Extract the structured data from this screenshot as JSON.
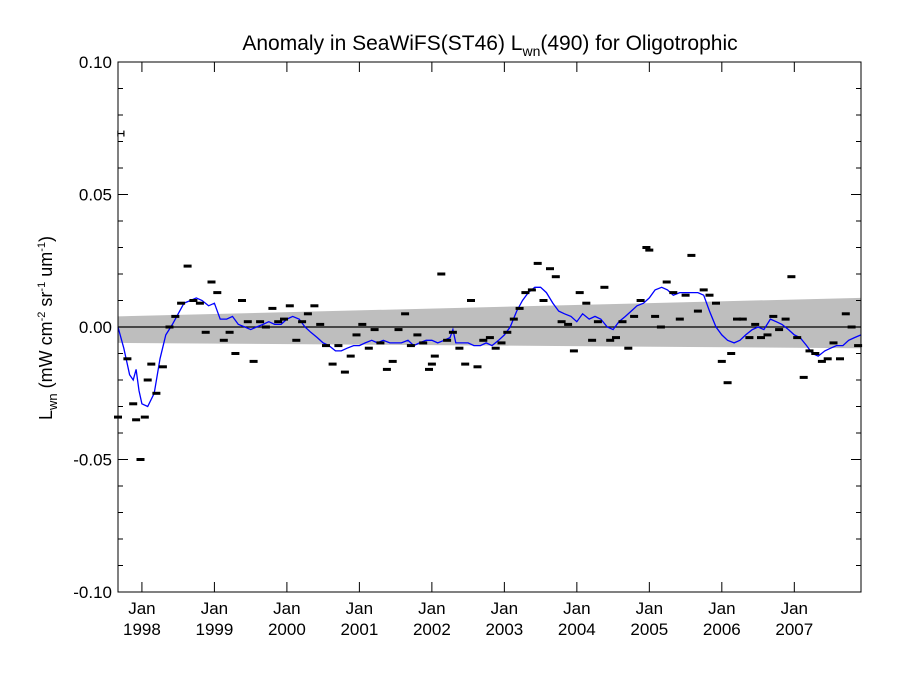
{
  "chart_data": {
    "type": "scatter",
    "title": {
      "prefix": "Anomaly in SeaWiFS(ST46) L",
      "subscript": "wn",
      "suffix": "(490) for Oligotrophic"
    },
    "ylabel": {
      "base": "L",
      "base_sub": "wn",
      "open": " (mW cm",
      "exp1": "-2",
      "mid1": " sr",
      "exp2": "-1",
      "mid2": " um",
      "exp3": "-1",
      "close": ")"
    },
    "xlim": [
      1997.67,
      2007.92
    ],
    "ylim": [
      -0.1,
      0.1
    ],
    "yticks": [
      {
        "value": 0.1,
        "label": "0.10"
      },
      {
        "value": 0.05,
        "label": "0.05"
      },
      {
        "value": 0.0,
        "label": "0.00"
      },
      {
        "value": -0.05,
        "label": "-0.05"
      },
      {
        "value": -0.1,
        "label": "-0.10"
      }
    ],
    "xticks": [
      {
        "value": 1998.0,
        "month": "Jan",
        "year": "1998"
      },
      {
        "value": 1999.0,
        "month": "Jan",
        "year": "1999"
      },
      {
        "value": 2000.0,
        "month": "Jan",
        "year": "2000"
      },
      {
        "value": 2001.0,
        "month": "Jan",
        "year": "2001"
      },
      {
        "value": 2002.0,
        "month": "Jan",
        "year": "2002"
      },
      {
        "value": 2003.0,
        "month": "Jan",
        "year": "2003"
      },
      {
        "value": 2004.0,
        "month": "Jan",
        "year": "2004"
      },
      {
        "value": 2005.0,
        "month": "Jan",
        "year": "2005"
      },
      {
        "value": 2006.0,
        "month": "Jan",
        "year": "2006"
      },
      {
        "value": 2007.0,
        "month": "Jan",
        "year": "2007"
      }
    ],
    "error_bar_marker": {
      "x": 1997.71,
      "y": 0.073
    },
    "points": [
      {
        "x": 1997.67,
        "y": -0.034
      },
      {
        "x": 1997.8,
        "y": -0.012
      },
      {
        "x": 1997.88,
        "y": -0.029
      },
      {
        "x": 1997.92,
        "y": -0.035
      },
      {
        "x": 1997.98,
        "y": -0.05
      },
      {
        "x": 1998.04,
        "y": -0.034
      },
      {
        "x": 1998.08,
        "y": -0.02
      },
      {
        "x": 1998.13,
        "y": -0.014
      },
      {
        "x": 1998.2,
        "y": -0.025
      },
      {
        "x": 1998.29,
        "y": -0.015
      },
      {
        "x": 1998.38,
        "y": 0.0
      },
      {
        "x": 1998.46,
        "y": 0.004
      },
      {
        "x": 1998.54,
        "y": 0.009
      },
      {
        "x": 1998.63,
        "y": 0.023
      },
      {
        "x": 1998.71,
        "y": 0.01
      },
      {
        "x": 1998.8,
        "y": 0.009
      },
      {
        "x": 1998.88,
        "y": -0.002
      },
      {
        "x": 1998.96,
        "y": 0.017
      },
      {
        "x": 1999.04,
        "y": 0.013
      },
      {
        "x": 1999.13,
        "y": -0.005
      },
      {
        "x": 1999.21,
        "y": -0.002
      },
      {
        "x": 1999.29,
        "y": -0.01
      },
      {
        "x": 1999.38,
        "y": 0.01
      },
      {
        "x": 1999.46,
        "y": 0.002
      },
      {
        "x": 1999.54,
        "y": -0.013
      },
      {
        "x": 1999.63,
        "y": 0.002
      },
      {
        "x": 1999.71,
        "y": 0.0
      },
      {
        "x": 1999.8,
        "y": 0.007
      },
      {
        "x": 1999.88,
        "y": 0.002
      },
      {
        "x": 1999.96,
        "y": 0.003
      },
      {
        "x": 2000.04,
        "y": 0.008
      },
      {
        "x": 2000.13,
        "y": -0.005
      },
      {
        "x": 2000.21,
        "y": 0.002
      },
      {
        "x": 2000.29,
        "y": 0.005
      },
      {
        "x": 2000.38,
        "y": 0.008
      },
      {
        "x": 2000.46,
        "y": 0.001
      },
      {
        "x": 2000.54,
        "y": -0.007
      },
      {
        "x": 2000.63,
        "y": -0.014
      },
      {
        "x": 2000.71,
        "y": -0.007
      },
      {
        "x": 2000.8,
        "y": -0.017
      },
      {
        "x": 2000.88,
        "y": -0.011
      },
      {
        "x": 2000.96,
        "y": -0.003
      },
      {
        "x": 2001.04,
        "y": 0.001
      },
      {
        "x": 2001.13,
        "y": -0.008
      },
      {
        "x": 2001.21,
        "y": -0.001
      },
      {
        "x": 2001.29,
        "y": -0.006
      },
      {
        "x": 2001.38,
        "y": -0.016
      },
      {
        "x": 2001.46,
        "y": -0.013
      },
      {
        "x": 2001.54,
        "y": -0.001
      },
      {
        "x": 2001.63,
        "y": 0.005
      },
      {
        "x": 2001.71,
        "y": -0.007
      },
      {
        "x": 2001.8,
        "y": -0.003
      },
      {
        "x": 2001.88,
        "y": -0.006
      },
      {
        "x": 2001.96,
        "y": -0.016
      },
      {
        "x": 2002.0,
        "y": -0.014
      },
      {
        "x": 2002.04,
        "y": -0.011
      },
      {
        "x": 2002.13,
        "y": 0.02
      },
      {
        "x": 2002.21,
        "y": -0.005
      },
      {
        "x": 2002.29,
        "y": -0.002
      },
      {
        "x": 2002.38,
        "y": -0.008
      },
      {
        "x": 2002.46,
        "y": -0.014
      },
      {
        "x": 2002.54,
        "y": 0.01
      },
      {
        "x": 2002.63,
        "y": -0.015
      },
      {
        "x": 2002.71,
        "y": -0.005
      },
      {
        "x": 2002.8,
        "y": -0.004
      },
      {
        "x": 2002.88,
        "y": -0.008
      },
      {
        "x": 2002.96,
        "y": -0.006
      },
      {
        "x": 2003.04,
        "y": -0.002
      },
      {
        "x": 2003.13,
        "y": 0.003
      },
      {
        "x": 2003.21,
        "y": 0.007
      },
      {
        "x": 2003.29,
        "y": 0.013
      },
      {
        "x": 2003.38,
        "y": 0.014
      },
      {
        "x": 2003.46,
        "y": 0.024
      },
      {
        "x": 2003.54,
        "y": 0.01
      },
      {
        "x": 2003.63,
        "y": 0.022
      },
      {
        "x": 2003.71,
        "y": 0.019
      },
      {
        "x": 2003.79,
        "y": 0.002
      },
      {
        "x": 2003.88,
        "y": 0.001
      },
      {
        "x": 2003.96,
        "y": -0.009
      },
      {
        "x": 2004.04,
        "y": 0.013
      },
      {
        "x": 2004.13,
        "y": 0.009
      },
      {
        "x": 2004.21,
        "y": -0.005
      },
      {
        "x": 2004.29,
        "y": 0.002
      },
      {
        "x": 2004.38,
        "y": 0.015
      },
      {
        "x": 2004.46,
        "y": -0.005
      },
      {
        "x": 2004.54,
        "y": -0.004
      },
      {
        "x": 2004.63,
        "y": 0.002
      },
      {
        "x": 2004.71,
        "y": -0.008
      },
      {
        "x": 2004.79,
        "y": 0.004
      },
      {
        "x": 2004.88,
        "y": 0.01
      },
      {
        "x": 2004.96,
        "y": 0.03
      },
      {
        "x": 2005.0,
        "y": 0.029
      },
      {
        "x": 2005.08,
        "y": 0.004
      },
      {
        "x": 2005.16,
        "y": 0.0
      },
      {
        "x": 2005.24,
        "y": 0.017
      },
      {
        "x": 2005.33,
        "y": 0.013
      },
      {
        "x": 2005.42,
        "y": 0.003
      },
      {
        "x": 2005.5,
        "y": 0.012
      },
      {
        "x": 2005.58,
        "y": 0.027
      },
      {
        "x": 2005.67,
        "y": 0.006
      },
      {
        "x": 2005.75,
        "y": 0.014
      },
      {
        "x": 2005.83,
        "y": 0.012
      },
      {
        "x": 2005.92,
        "y": 0.009
      },
      {
        "x": 2006.0,
        "y": -0.013
      },
      {
        "x": 2006.08,
        "y": -0.021
      },
      {
        "x": 2006.13,
        "y": -0.01
      },
      {
        "x": 2006.21,
        "y": 0.003
      },
      {
        "x": 2006.29,
        "y": 0.003
      },
      {
        "x": 2006.38,
        "y": -0.004
      },
      {
        "x": 2006.46,
        "y": 0.001
      },
      {
        "x": 2006.54,
        "y": -0.004
      },
      {
        "x": 2006.63,
        "y": -0.003
      },
      {
        "x": 2006.71,
        "y": 0.004
      },
      {
        "x": 2006.79,
        "y": -0.001
      },
      {
        "x": 2006.88,
        "y": 0.003
      },
      {
        "x": 2006.96,
        "y": 0.019
      },
      {
        "x": 2007.04,
        "y": -0.004
      },
      {
        "x": 2007.13,
        "y": -0.019
      },
      {
        "x": 2007.21,
        "y": -0.009
      },
      {
        "x": 2007.29,
        "y": -0.01
      },
      {
        "x": 2007.38,
        "y": -0.013
      },
      {
        "x": 2007.46,
        "y": -0.012
      },
      {
        "x": 2007.54,
        "y": -0.006
      },
      {
        "x": 2007.63,
        "y": -0.012
      },
      {
        "x": 2007.71,
        "y": 0.005
      },
      {
        "x": 2007.79,
        "y": 0.0
      },
      {
        "x": 2007.88,
        "y": -0.007
      }
    ],
    "smoothed_line": {
      "color": "#0000ff",
      "points": [
        {
          "x": 1997.67,
          "y": 0.0
        },
        {
          "x": 1997.75,
          "y": -0.008
        },
        {
          "x": 1997.83,
          "y": -0.018
        },
        {
          "x": 1997.88,
          "y": -0.02
        },
        {
          "x": 1997.92,
          "y": -0.016
        },
        {
          "x": 1997.96,
          "y": -0.024
        },
        {
          "x": 1998.0,
          "y": -0.029
        },
        {
          "x": 1998.08,
          "y": -0.03
        },
        {
          "x": 1998.17,
          "y": -0.025
        },
        {
          "x": 1998.25,
          "y": -0.012
        },
        {
          "x": 1998.33,
          "y": -0.003
        },
        {
          "x": 1998.42,
          "y": 0.001
        },
        {
          "x": 1998.5,
          "y": 0.005
        },
        {
          "x": 1998.58,
          "y": 0.009
        },
        {
          "x": 1998.67,
          "y": 0.01
        },
        {
          "x": 1998.75,
          "y": 0.011
        },
        {
          "x": 1998.83,
          "y": 0.01
        },
        {
          "x": 1998.92,
          "y": 0.008
        },
        {
          "x": 1999.0,
          "y": 0.009
        },
        {
          "x": 1999.08,
          "y": 0.003
        },
        {
          "x": 1999.17,
          "y": 0.003
        },
        {
          "x": 1999.25,
          "y": 0.004
        },
        {
          "x": 1999.33,
          "y": 0.001
        },
        {
          "x": 1999.42,
          "y": 0.0
        },
        {
          "x": 1999.5,
          "y": -0.001
        },
        {
          "x": 1999.58,
          "y": 0.0
        },
        {
          "x": 1999.67,
          "y": 0.001
        },
        {
          "x": 1999.75,
          "y": 0.002
        },
        {
          "x": 1999.83,
          "y": 0.001
        },
        {
          "x": 1999.92,
          "y": 0.001
        },
        {
          "x": 2000.0,
          "y": 0.003
        },
        {
          "x": 2000.08,
          "y": 0.004
        },
        {
          "x": 2000.17,
          "y": 0.003
        },
        {
          "x": 2000.25,
          "y": 0.0
        },
        {
          "x": 2000.33,
          "y": -0.002
        },
        {
          "x": 2000.42,
          "y": -0.004
        },
        {
          "x": 2000.5,
          "y": -0.006
        },
        {
          "x": 2000.58,
          "y": -0.007
        },
        {
          "x": 2000.67,
          "y": -0.009
        },
        {
          "x": 2000.75,
          "y": -0.009
        },
        {
          "x": 2000.83,
          "y": -0.008
        },
        {
          "x": 2000.92,
          "y": -0.007
        },
        {
          "x": 2001.0,
          "y": -0.007
        },
        {
          "x": 2001.08,
          "y": -0.006
        },
        {
          "x": 2001.17,
          "y": -0.005
        },
        {
          "x": 2001.25,
          "y": -0.006
        },
        {
          "x": 2001.33,
          "y": -0.005
        },
        {
          "x": 2001.42,
          "y": -0.006
        },
        {
          "x": 2001.5,
          "y": -0.006
        },
        {
          "x": 2001.58,
          "y": -0.006
        },
        {
          "x": 2001.67,
          "y": -0.005
        },
        {
          "x": 2001.75,
          "y": -0.007
        },
        {
          "x": 2001.83,
          "y": -0.006
        },
        {
          "x": 2001.92,
          "y": -0.005
        },
        {
          "x": 2002.0,
          "y": -0.005
        },
        {
          "x": 2002.08,
          "y": -0.006
        },
        {
          "x": 2002.17,
          "y": -0.005
        },
        {
          "x": 2002.25,
          "y": -0.004
        },
        {
          "x": 2002.29,
          "y": -0.001
        },
        {
          "x": 2002.33,
          "y": -0.006
        },
        {
          "x": 2002.42,
          "y": -0.006
        },
        {
          "x": 2002.5,
          "y": -0.006
        },
        {
          "x": 2002.58,
          "y": -0.007
        },
        {
          "x": 2002.67,
          "y": -0.007
        },
        {
          "x": 2002.75,
          "y": -0.006
        },
        {
          "x": 2002.83,
          "y": -0.007
        },
        {
          "x": 2002.92,
          "y": -0.005
        },
        {
          "x": 2003.0,
          "y": -0.003
        },
        {
          "x": 2003.08,
          "y": 0.0
        },
        {
          "x": 2003.17,
          "y": 0.006
        },
        {
          "x": 2003.25,
          "y": 0.01
        },
        {
          "x": 2003.33,
          "y": 0.013
        },
        {
          "x": 2003.42,
          "y": 0.015
        },
        {
          "x": 2003.5,
          "y": 0.015
        },
        {
          "x": 2003.58,
          "y": 0.013
        },
        {
          "x": 2003.67,
          "y": 0.009
        },
        {
          "x": 2003.75,
          "y": 0.006
        },
        {
          "x": 2003.83,
          "y": 0.005
        },
        {
          "x": 2003.92,
          "y": 0.004
        },
        {
          "x": 2004.0,
          "y": 0.002
        },
        {
          "x": 2004.08,
          "y": 0.005
        },
        {
          "x": 2004.17,
          "y": 0.003
        },
        {
          "x": 2004.25,
          "y": 0.004
        },
        {
          "x": 2004.33,
          "y": 0.003
        },
        {
          "x": 2004.42,
          "y": 0.0
        },
        {
          "x": 2004.5,
          "y": -0.001
        },
        {
          "x": 2004.58,
          "y": 0.002
        },
        {
          "x": 2004.67,
          "y": 0.004
        },
        {
          "x": 2004.75,
          "y": 0.006
        },
        {
          "x": 2004.83,
          "y": 0.008
        },
        {
          "x": 2004.92,
          "y": 0.009
        },
        {
          "x": 2005.0,
          "y": 0.011
        },
        {
          "x": 2005.08,
          "y": 0.014
        },
        {
          "x": 2005.17,
          "y": 0.015
        },
        {
          "x": 2005.25,
          "y": 0.014
        },
        {
          "x": 2005.33,
          "y": 0.012
        },
        {
          "x": 2005.42,
          "y": 0.013
        },
        {
          "x": 2005.5,
          "y": 0.013
        },
        {
          "x": 2005.58,
          "y": 0.013
        },
        {
          "x": 2005.67,
          "y": 0.013
        },
        {
          "x": 2005.75,
          "y": 0.012
        },
        {
          "x": 2005.83,
          "y": 0.006
        },
        {
          "x": 2005.92,
          "y": 0.0
        },
        {
          "x": 2006.0,
          "y": -0.003
        },
        {
          "x": 2006.08,
          "y": -0.005
        },
        {
          "x": 2006.17,
          "y": -0.006
        },
        {
          "x": 2006.25,
          "y": -0.005
        },
        {
          "x": 2006.33,
          "y": -0.003
        },
        {
          "x": 2006.42,
          "y": -0.001
        },
        {
          "x": 2006.5,
          "y": 0.0
        },
        {
          "x": 2006.58,
          "y": -0.001
        },
        {
          "x": 2006.67,
          "y": 0.003
        },
        {
          "x": 2006.75,
          "y": 0.002
        },
        {
          "x": 2006.83,
          "y": 0.001
        },
        {
          "x": 2006.92,
          "y": -0.001
        },
        {
          "x": 2007.0,
          "y": -0.003
        },
        {
          "x": 2007.08,
          "y": -0.004
        },
        {
          "x": 2007.17,
          "y": -0.007
        },
        {
          "x": 2007.25,
          "y": -0.01
        },
        {
          "x": 2007.33,
          "y": -0.011
        },
        {
          "x": 2007.42,
          "y": -0.009
        },
        {
          "x": 2007.5,
          "y": -0.008
        },
        {
          "x": 2007.58,
          "y": -0.007
        },
        {
          "x": 2007.67,
          "y": -0.007
        },
        {
          "x": 2007.75,
          "y": -0.005
        },
        {
          "x": 2007.83,
          "y": -0.004
        },
        {
          "x": 2007.92,
          "y": -0.003
        }
      ]
    },
    "confidence_band": {
      "color": "#bebebe",
      "start": {
        "x": 1997.67,
        "lower": -0.006,
        "upper": 0.004
      },
      "end": {
        "x": 2007.92,
        "lower": -0.008,
        "upper": 0.011
      }
    },
    "zero_line": {
      "y": 0.0,
      "color": "#000000"
    },
    "grid": false,
    "legend": "none"
  }
}
